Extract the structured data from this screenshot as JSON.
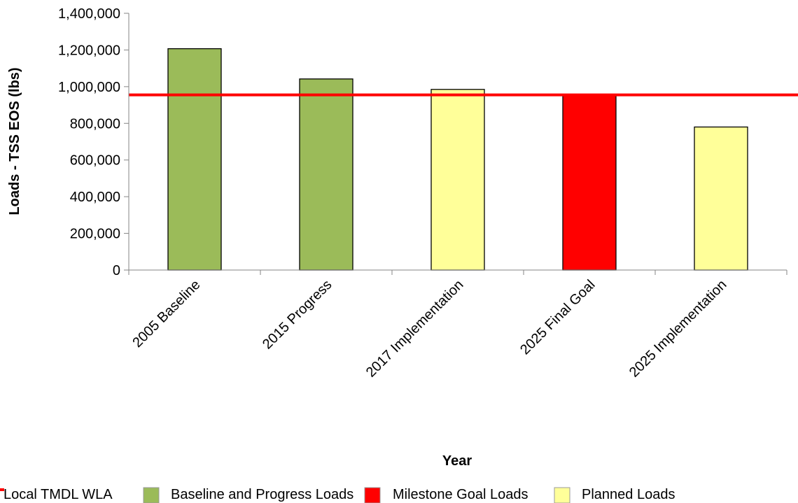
{
  "chart_data": {
    "type": "bar",
    "title": "",
    "xlabel": "Year",
    "ylabel": "Loads - TSS EOS (lbs)",
    "ylim": [
      0,
      1400000
    ],
    "yticks": [
      0,
      200000,
      400000,
      600000,
      800000,
      1000000,
      1200000,
      1400000
    ],
    "ytick_labels": [
      "0",
      "200,000",
      "400,000",
      "600,000",
      "800,000",
      "1,000,000",
      "1,200,000",
      "1,400,000"
    ],
    "categories": [
      "2005 Baseline",
      "2015 Progress",
      "2017 Implementation",
      "2025 Final Goal",
      "2025 Implementation"
    ],
    "values": [
      1207000,
      1042000,
      985000,
      955000,
      780000
    ],
    "bar_series": [
      "Baseline and Progress Loads",
      "Baseline and Progress Loads",
      "Planned Loads",
      "Milestone Goal Loads",
      "Planned Loads"
    ],
    "reference_line": {
      "name": "Local TMDL WLA",
      "value": 955000,
      "color": "#ff0000"
    },
    "series": [
      {
        "name": "Local TMDL WLA",
        "type": "line",
        "color": "#ff0000"
      },
      {
        "name": "Baseline and Progress Loads",
        "type": "bar",
        "color": "#9bbb59"
      },
      {
        "name": "Milestone Goal Loads",
        "type": "bar",
        "color": "#ff0000"
      },
      {
        "name": "Planned Loads",
        "type": "bar",
        "color": "#ffff99"
      }
    ],
    "grid": false,
    "legend_position": "bottom"
  }
}
